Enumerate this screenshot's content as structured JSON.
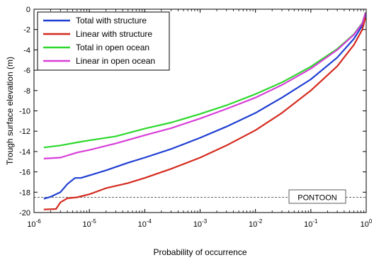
{
  "chart_data": {
    "type": "line",
    "xlabel": "Probability of occurrence",
    "ylabel": "Trough surface elevation (m)",
    "xscale": "log",
    "xlim": [
      1e-06,
      1
    ],
    "ylim": [
      -20,
      0
    ],
    "x_ticks": [
      {
        "value": 1e-06,
        "base": "10",
        "exp": "-6"
      },
      {
        "value": 1e-05,
        "base": "10",
        "exp": "-5"
      },
      {
        "value": 0.0001,
        "base": "10",
        "exp": "-4"
      },
      {
        "value": 0.001,
        "base": "10",
        "exp": "-3"
      },
      {
        "value": 0.01,
        "base": "10",
        "exp": "-2"
      },
      {
        "value": 0.1,
        "base": "10",
        "exp": "-1"
      },
      {
        "value": 1,
        "base": "10",
        "exp": "0"
      }
    ],
    "y_ticks": [
      {
        "value": 0,
        "label": "0"
      },
      {
        "value": -2,
        "label": "-2"
      },
      {
        "value": -4,
        "label": "-4"
      },
      {
        "value": -6,
        "label": "-6"
      },
      {
        "value": -8,
        "label": "-8"
      },
      {
        "value": -10,
        "label": "-10"
      },
      {
        "value": -12,
        "label": "-12"
      },
      {
        "value": -14,
        "label": "-14"
      },
      {
        "value": -16,
        "label": "-16"
      },
      {
        "value": -18,
        "label": "-18"
      },
      {
        "value": -20,
        "label": "-20"
      }
    ],
    "legend_position": "top-left",
    "grid": false,
    "series": [
      {
        "name": "Total with structure",
        "color": "#1f3fd1",
        "points": [
          [
            1.5e-06,
            -18.65
          ],
          [
            2e-06,
            -18.45
          ],
          [
            3e-06,
            -18.0
          ],
          [
            4e-06,
            -17.2
          ],
          [
            5.5e-06,
            -16.6
          ],
          [
            7e-06,
            -16.6
          ],
          [
            1e-05,
            -16.35
          ],
          [
            2e-05,
            -15.85
          ],
          [
            5e-05,
            -15.1
          ],
          [
            0.0001,
            -14.6
          ],
          [
            0.0003,
            -13.75
          ],
          [
            0.001,
            -12.65
          ],
          [
            0.003,
            -11.55
          ],
          [
            0.01,
            -10.2
          ],
          [
            0.03,
            -8.7
          ],
          [
            0.1,
            -6.9
          ],
          [
            0.3,
            -4.75
          ],
          [
            0.6,
            -2.9
          ],
          [
            0.85,
            -1.6
          ],
          [
            0.97,
            -0.5
          ]
        ]
      },
      {
        "name": "Linear with structure",
        "color": "#d42a1e",
        "points": [
          [
            1.5e-06,
            -19.7
          ],
          [
            2.5e-06,
            -19.65
          ],
          [
            3e-06,
            -19.0
          ],
          [
            4e-06,
            -18.6
          ],
          [
            6e-06,
            -18.5
          ],
          [
            1e-05,
            -18.2
          ],
          [
            2e-05,
            -17.6
          ],
          [
            5e-05,
            -17.1
          ],
          [
            0.0001,
            -16.6
          ],
          [
            0.0003,
            -15.7
          ],
          [
            0.001,
            -14.6
          ],
          [
            0.003,
            -13.4
          ],
          [
            0.01,
            -11.9
          ],
          [
            0.03,
            -10.2
          ],
          [
            0.1,
            -8.0
          ],
          [
            0.3,
            -5.6
          ],
          [
            0.6,
            -3.5
          ],
          [
            0.85,
            -2.0
          ],
          [
            0.97,
            -0.8
          ]
        ]
      },
      {
        "name": "Total in open ocean",
        "color": "#2ed82e",
        "points": [
          [
            1.5e-06,
            -13.6
          ],
          [
            3e-06,
            -13.4
          ],
          [
            6e-06,
            -13.1
          ],
          [
            1e-05,
            -12.9
          ],
          [
            3e-05,
            -12.5
          ],
          [
            0.0001,
            -11.75
          ],
          [
            0.0003,
            -11.15
          ],
          [
            0.001,
            -10.3
          ],
          [
            0.003,
            -9.45
          ],
          [
            0.01,
            -8.35
          ],
          [
            0.03,
            -7.2
          ],
          [
            0.1,
            -5.65
          ],
          [
            0.3,
            -3.9
          ],
          [
            0.6,
            -2.45
          ],
          [
            0.85,
            -1.35
          ],
          [
            0.97,
            -0.3
          ]
        ]
      },
      {
        "name": "Linear in open ocean",
        "color": "#d83ed8",
        "points": [
          [
            1.5e-06,
            -14.7
          ],
          [
            3e-06,
            -14.6
          ],
          [
            6e-06,
            -14.1
          ],
          [
            1e-05,
            -13.85
          ],
          [
            3e-05,
            -13.2
          ],
          [
            0.0001,
            -12.4
          ],
          [
            0.0003,
            -11.7
          ],
          [
            0.001,
            -10.75
          ],
          [
            0.003,
            -9.8
          ],
          [
            0.01,
            -8.7
          ],
          [
            0.03,
            -7.45
          ],
          [
            0.1,
            -5.85
          ],
          [
            0.3,
            -4.0
          ],
          [
            0.6,
            -2.5
          ],
          [
            0.85,
            -1.4
          ],
          [
            0.97,
            -0.35
          ]
        ]
      }
    ],
    "reference_lines": [
      {
        "y": -18.5,
        "style": "dashed",
        "color": "#333333",
        "label": "PONTOON"
      }
    ]
  }
}
